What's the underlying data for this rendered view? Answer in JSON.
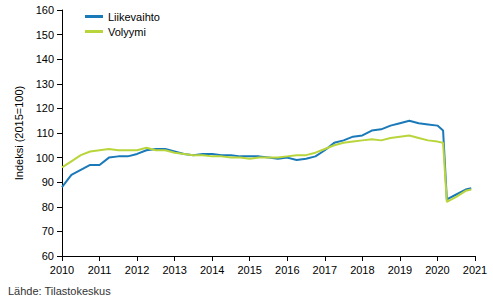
{
  "chart_data": {
    "type": "line",
    "y_label": "Indeksi (2015=100)",
    "source": "Lähde: Tilastokeskus",
    "x": [
      2010.0,
      2010.25,
      2010.5,
      2010.75,
      2011.0,
      2011.25,
      2011.5,
      2011.75,
      2012.0,
      2012.25,
      2012.5,
      2012.75,
      2013.0,
      2013.25,
      2013.5,
      2013.75,
      2014.0,
      2014.25,
      2014.5,
      2014.75,
      2015.0,
      2015.25,
      2015.5,
      2015.75,
      2016.0,
      2016.25,
      2016.5,
      2016.75,
      2017.0,
      2017.25,
      2017.5,
      2017.75,
      2018.0,
      2018.25,
      2018.5,
      2018.75,
      2019.0,
      2019.25,
      2019.5,
      2019.75,
      2020.0,
      2020.15,
      2020.25,
      2020.5,
      2020.75,
      2020.9
    ],
    "series": [
      {
        "name": "Liikevaihto",
        "color": "#1a79b8",
        "values": [
          88,
          93,
          95,
          97,
          97,
          100,
          100.5,
          100.5,
          101.5,
          103,
          103.5,
          103.5,
          102.5,
          101.5,
          101,
          101.5,
          101.5,
          101,
          101,
          100.5,
          100.5,
          100.5,
          100,
          99.5,
          100,
          99,
          99.5,
          100.5,
          103,
          106,
          107,
          108.5,
          109,
          111,
          111.5,
          113,
          114,
          115,
          114,
          113.5,
          113,
          111,
          83,
          85,
          87,
          87.5
        ]
      },
      {
        "name": "Volyymi",
        "color": "#b8d53c",
        "values": [
          96,
          98.5,
          101,
          102.5,
          103,
          103.5,
          103,
          103,
          103,
          104,
          103,
          103,
          102,
          101.5,
          101,
          101,
          100.5,
          100.5,
          100,
          100,
          99.5,
          100,
          100,
          100,
          100.5,
          101,
          101,
          102,
          103.5,
          105,
          106,
          106.5,
          107,
          107.5,
          107,
          108,
          108.5,
          109,
          108,
          107,
          106.5,
          106,
          82,
          84,
          86.5,
          87
        ]
      }
    ],
    "xlim": [
      2010,
      2021
    ],
    "xticks": [
      2010,
      2011,
      2012,
      2013,
      2014,
      2015,
      2016,
      2017,
      2018,
      2019,
      2020,
      2021
    ],
    "ylim": [
      60,
      160
    ],
    "yticks": [
      60,
      70,
      80,
      90,
      100,
      110,
      120,
      130,
      140,
      150,
      160
    ],
    "grid": false,
    "legend": "top-left"
  }
}
